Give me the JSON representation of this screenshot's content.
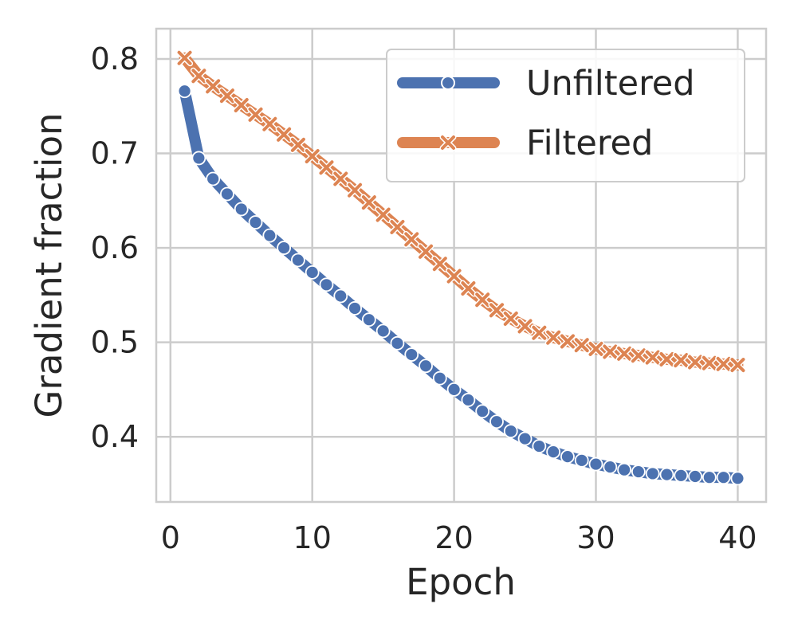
{
  "chart_data": {
    "type": "line",
    "title": "",
    "xlabel": "Epoch",
    "ylabel": "Gradient fraction",
    "xlim": [
      -1,
      42
    ],
    "ylim": [
      0.331,
      0.832
    ],
    "xticks": [
      0,
      10,
      20,
      30,
      40
    ],
    "yticks": [
      0.4,
      0.5,
      0.6,
      0.7,
      0.8
    ],
    "xtick_labels": [
      "0",
      "10",
      "20",
      "30",
      "40"
    ],
    "ytick_labels": [
      "0.4",
      "0.5",
      "0.6",
      "0.7",
      "0.8"
    ],
    "grid": true,
    "legend_position": "top-right",
    "x": [
      1,
      2,
      3,
      4,
      5,
      6,
      7,
      8,
      9,
      10,
      11,
      12,
      13,
      14,
      15,
      16,
      17,
      18,
      19,
      20,
      21,
      22,
      23,
      24,
      25,
      26,
      27,
      28,
      29,
      30,
      31,
      32,
      33,
      34,
      35,
      36,
      37,
      38,
      39,
      40
    ],
    "series": [
      {
        "name": "Unfiltered",
        "color": "#4c72b0",
        "marker": "circle",
        "values": [
          0.766,
          0.695,
          0.673,
          0.657,
          0.641,
          0.627,
          0.613,
          0.6,
          0.587,
          0.574,
          0.561,
          0.549,
          0.536,
          0.524,
          0.512,
          0.499,
          0.487,
          0.475,
          0.462,
          0.45,
          0.439,
          0.427,
          0.416,
          0.406,
          0.398,
          0.39,
          0.384,
          0.379,
          0.375,
          0.371,
          0.368,
          0.365,
          0.363,
          0.361,
          0.36,
          0.359,
          0.358,
          0.357,
          0.357,
          0.356
        ]
      },
      {
        "name": "Filtered",
        "color": "#dd8452",
        "marker": "x",
        "values": [
          0.801,
          0.782,
          0.771,
          0.761,
          0.751,
          0.741,
          0.731,
          0.72,
          0.709,
          0.697,
          0.685,
          0.673,
          0.661,
          0.648,
          0.635,
          0.622,
          0.609,
          0.596,
          0.583,
          0.57,
          0.557,
          0.545,
          0.534,
          0.525,
          0.517,
          0.51,
          0.505,
          0.501,
          0.497,
          0.493,
          0.49,
          0.488,
          0.486,
          0.484,
          0.482,
          0.481,
          0.479,
          0.478,
          0.477,
          0.476
        ]
      }
    ]
  }
}
